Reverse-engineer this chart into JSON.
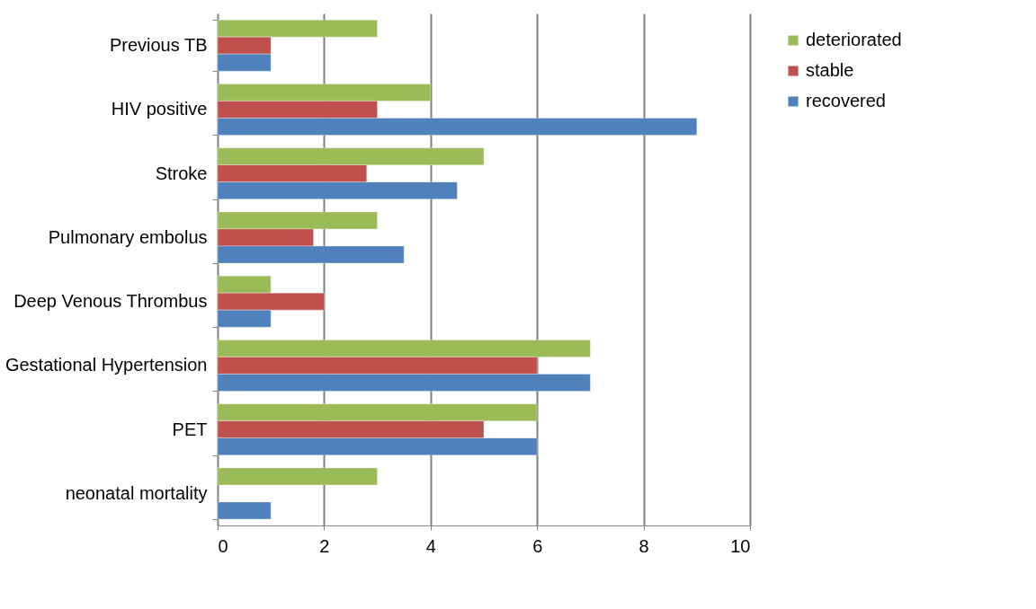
{
  "chart_data": {
    "type": "bar",
    "orientation": "horizontal",
    "categories": [
      "Previous TB",
      "HIV positive",
      "Stroke",
      "Pulmonary embolus",
      "Deep Venous Thrombus",
      "Gestational Hypertension",
      "PET",
      "neonatal mortality"
    ],
    "series": [
      {
        "name": "deteriorated",
        "color": "#9bbb59",
        "values": [
          3,
          4,
          5,
          3,
          1,
          7,
          6,
          3
        ]
      },
      {
        "name": "stable",
        "color": "#c0504d",
        "values": [
          1,
          3,
          2.8,
          1.8,
          2,
          6,
          5,
          null
        ]
      },
      {
        "name": "recovered",
        "color": "#4f81bd",
        "values": [
          1,
          9,
          4.5,
          3.5,
          1,
          7,
          6,
          1
        ]
      }
    ],
    "xlim": [
      0,
      10
    ],
    "xticks": [
      0,
      2,
      4,
      6,
      8,
      10
    ],
    "grid": "x",
    "legend": "right"
  }
}
